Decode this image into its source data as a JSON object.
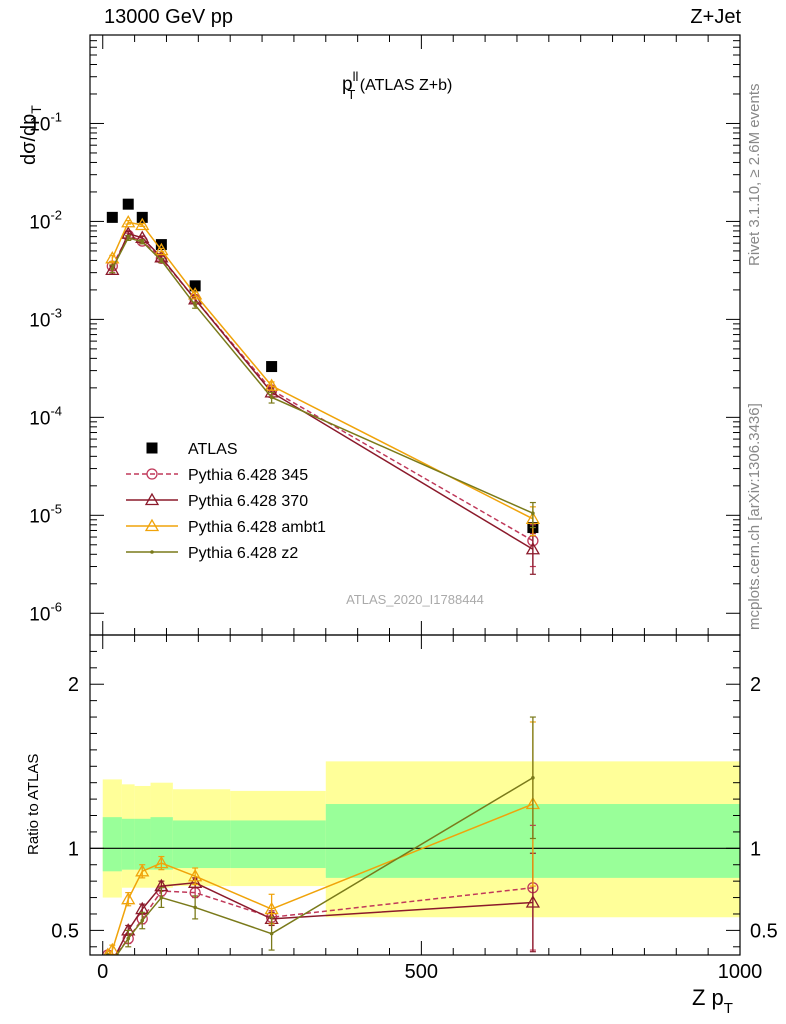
{
  "header": {
    "left_label": "13000 GeV pp",
    "right_label": "Z+Jet"
  },
  "side_labels": {
    "rivet": "Rivet 3.1.10, ≥ 2.6M events",
    "mcplots": "mcplots.cern.ch [arXiv:1306.3436]"
  },
  "chart_data": [
    {
      "type": "scatter",
      "panel": "main",
      "title": "p_T^ll (ATLAS Z+b)",
      "title_main": "p",
      "title_sup": "ll",
      "title_sub": "T",
      "title_rest": " (ATLAS Z+b)",
      "ylabel": "dσ/dp_T",
      "ylabel_main": "dσ/dp",
      "ylabel_sub": "T",
      "yscale": "log",
      "ylim": [
        6e-07,
        0.8
      ],
      "xlim": [
        -20,
        1000
      ],
      "yticks": [
        {
          "exp": "-6",
          "v": 1e-06
        },
        {
          "exp": "-5",
          "v": 1e-05
        },
        {
          "exp": "-4",
          "v": 0.0001
        },
        {
          "exp": "-3",
          "v": 0.001
        },
        {
          "exp": "-2",
          "v": 0.01
        },
        {
          "exp": "-1",
          "v": 0.1
        }
      ],
      "tick_base": "10",
      "watermark": "ATLAS_2020_I1788444",
      "legend_position": "lower-left",
      "series": [
        {
          "name": "ATLAS",
          "color": "#000000",
          "marker": "square",
          "line": "none",
          "x": [
            15,
            40,
            62,
            92,
            145,
            265,
            675
          ],
          "y": [
            0.011,
            0.015,
            0.011,
            0.0058,
            0.0022,
            0.00033,
            7.5e-06
          ],
          "err": [
            0,
            0,
            0,
            0,
            0,
            0,
            0
          ]
        },
        {
          "name": "Pythia 6.428 345",
          "color": "#c0395a",
          "marker": "circle",
          "line": "dashed",
          "x": [
            15,
            40,
            62,
            92,
            145,
            265,
            675
          ],
          "y": [
            0.0035,
            0.0072,
            0.0063,
            0.0042,
            0.0016,
            0.00019,
            5.5e-06
          ],
          "err": [
            0.0003,
            0.0004,
            0.0003,
            0.0002,
            0.0001,
            2e-05,
            2.5e-06
          ]
        },
        {
          "name": "Pythia 6.428 370",
          "color": "#8b1a2b",
          "marker": "triangle",
          "line": "solid",
          "x": [
            15,
            40,
            62,
            92,
            145,
            265,
            675
          ],
          "y": [
            0.0032,
            0.0075,
            0.0068,
            0.0043,
            0.0016,
            0.00018,
            4.5e-06
          ],
          "err": [
            0.0003,
            0.0004,
            0.0003,
            0.0002,
            0.0001,
            2e-05,
            2e-06
          ]
        },
        {
          "name": "Pythia 6.428 ambt1",
          "color": "#f0a30a",
          "marker": "triangle",
          "line": "solid",
          "x": [
            15,
            40,
            62,
            92,
            145,
            265,
            675
          ],
          "y": [
            0.0042,
            0.0098,
            0.0092,
            0.0051,
            0.0018,
            0.00021,
            9.2e-06
          ],
          "err": [
            0.0003,
            0.0004,
            0.0003,
            0.0002,
            0.0001,
            2e-05,
            3e-06
          ]
        },
        {
          "name": "Pythia 6.428 z2",
          "color": "#7a7a1a",
          "marker": "dot",
          "line": "solid",
          "x": [
            15,
            40,
            62,
            92,
            145,
            265,
            675
          ],
          "y": [
            0.0033,
            0.0068,
            0.0062,
            0.004,
            0.0014,
            0.00016,
            1.05e-05
          ],
          "err": [
            0.0003,
            0.0004,
            0.0003,
            0.0002,
            0.0001,
            2e-05,
            3e-06
          ]
        }
      ]
    },
    {
      "type": "scatter",
      "panel": "ratio",
      "ylabel": "Ratio to ATLAS",
      "xlabel": "Z p_T",
      "xlabel_main": "Z p",
      "xlabel_sub": "T",
      "xlim": [
        -20,
        1000
      ],
      "ylim": [
        0.35,
        2.3
      ],
      "yticks": [
        0.5,
        1,
        2
      ],
      "ytick_labels": [
        "0.5",
        "1",
        "2"
      ],
      "xticks": [
        0,
        500,
        1000
      ],
      "xtick_labels": [
        "0",
        "500",
        "1000"
      ],
      "reference": 1,
      "bands": [
        {
          "x0": 0,
          "x1": 30,
          "in_lo": 0.86,
          "in_hi": 1.19,
          "out_lo": 0.7,
          "out_hi": 1.42
        },
        {
          "x0": 30,
          "x1": 50,
          "in_lo": 0.87,
          "in_hi": 1.18,
          "out_lo": 0.76,
          "out_hi": 1.39
        },
        {
          "x0": 50,
          "x1": 75,
          "in_lo": 0.87,
          "in_hi": 1.18,
          "out_lo": 0.76,
          "out_hi": 1.38
        },
        {
          "x0": 75,
          "x1": 110,
          "in_lo": 0.87,
          "in_hi": 1.19,
          "out_lo": 0.76,
          "out_hi": 1.4
        },
        {
          "x0": 110,
          "x1": 200,
          "in_lo": 0.88,
          "in_hi": 1.17,
          "out_lo": 0.77,
          "out_hi": 1.36
        },
        {
          "x0": 200,
          "x1": 350,
          "in_lo": 0.88,
          "in_hi": 1.17,
          "out_lo": 0.77,
          "out_hi": 1.35
        },
        {
          "x0": 350,
          "x1": 1000,
          "in_lo": 0.82,
          "in_hi": 1.27,
          "out_lo": 0.58,
          "out_hi": 1.53
        }
      ],
      "band_colors": {
        "inner": "#99ff99",
        "outer": "#ffff99"
      },
      "series": [
        {
          "name": "Pythia 6.428 345",
          "color": "#c0395a",
          "marker": "circle",
          "line": "dashed",
          "x": [
            8,
            15,
            40,
            62,
            92,
            145,
            265,
            675
          ],
          "y": [
            0.35,
            0.32,
            0.45,
            0.57,
            0.74,
            0.73,
            0.58,
            0.76
          ],
          "err": [
            0,
            0.03,
            0.03,
            0.03,
            0.03,
            0.03,
            0.04,
            0.38
          ]
        },
        {
          "name": "Pythia 6.428 370",
          "color": "#8b1a2b",
          "marker": "triangle",
          "line": "solid",
          "x": [
            8,
            15,
            40,
            62,
            92,
            145,
            265,
            675
          ],
          "y": [
            0.35,
            0.31,
            0.5,
            0.63,
            0.77,
            0.79,
            0.57,
            0.67
          ],
          "err": [
            0,
            0.03,
            0.03,
            0.03,
            0.03,
            0.03,
            0.04,
            0.3
          ]
        },
        {
          "name": "Pythia 6.428 ambt1",
          "color": "#f0a30a",
          "marker": "triangle",
          "line": "solid",
          "x": [
            8,
            15,
            40,
            62,
            92,
            145,
            265,
            675
          ],
          "y": [
            0.35,
            0.38,
            0.69,
            0.86,
            0.91,
            0.83,
            0.63,
            1.27
          ],
          "err": [
            0,
            0.03,
            0.04,
            0.04,
            0.04,
            0.05,
            0.09,
            0.5
          ]
        },
        {
          "name": "Pythia 6.428 z2",
          "color": "#7a7a1a",
          "marker": "dot",
          "line": "solid",
          "x": [
            8,
            15,
            40,
            62,
            92,
            145,
            265,
            675
          ],
          "y": [
            0.35,
            0.31,
            0.45,
            0.56,
            0.7,
            0.64,
            0.48,
            1.43
          ],
          "err": [
            0,
            0.03,
            0.05,
            0.05,
            0.06,
            0.07,
            0.1,
            0.37
          ]
        }
      ]
    }
  ]
}
